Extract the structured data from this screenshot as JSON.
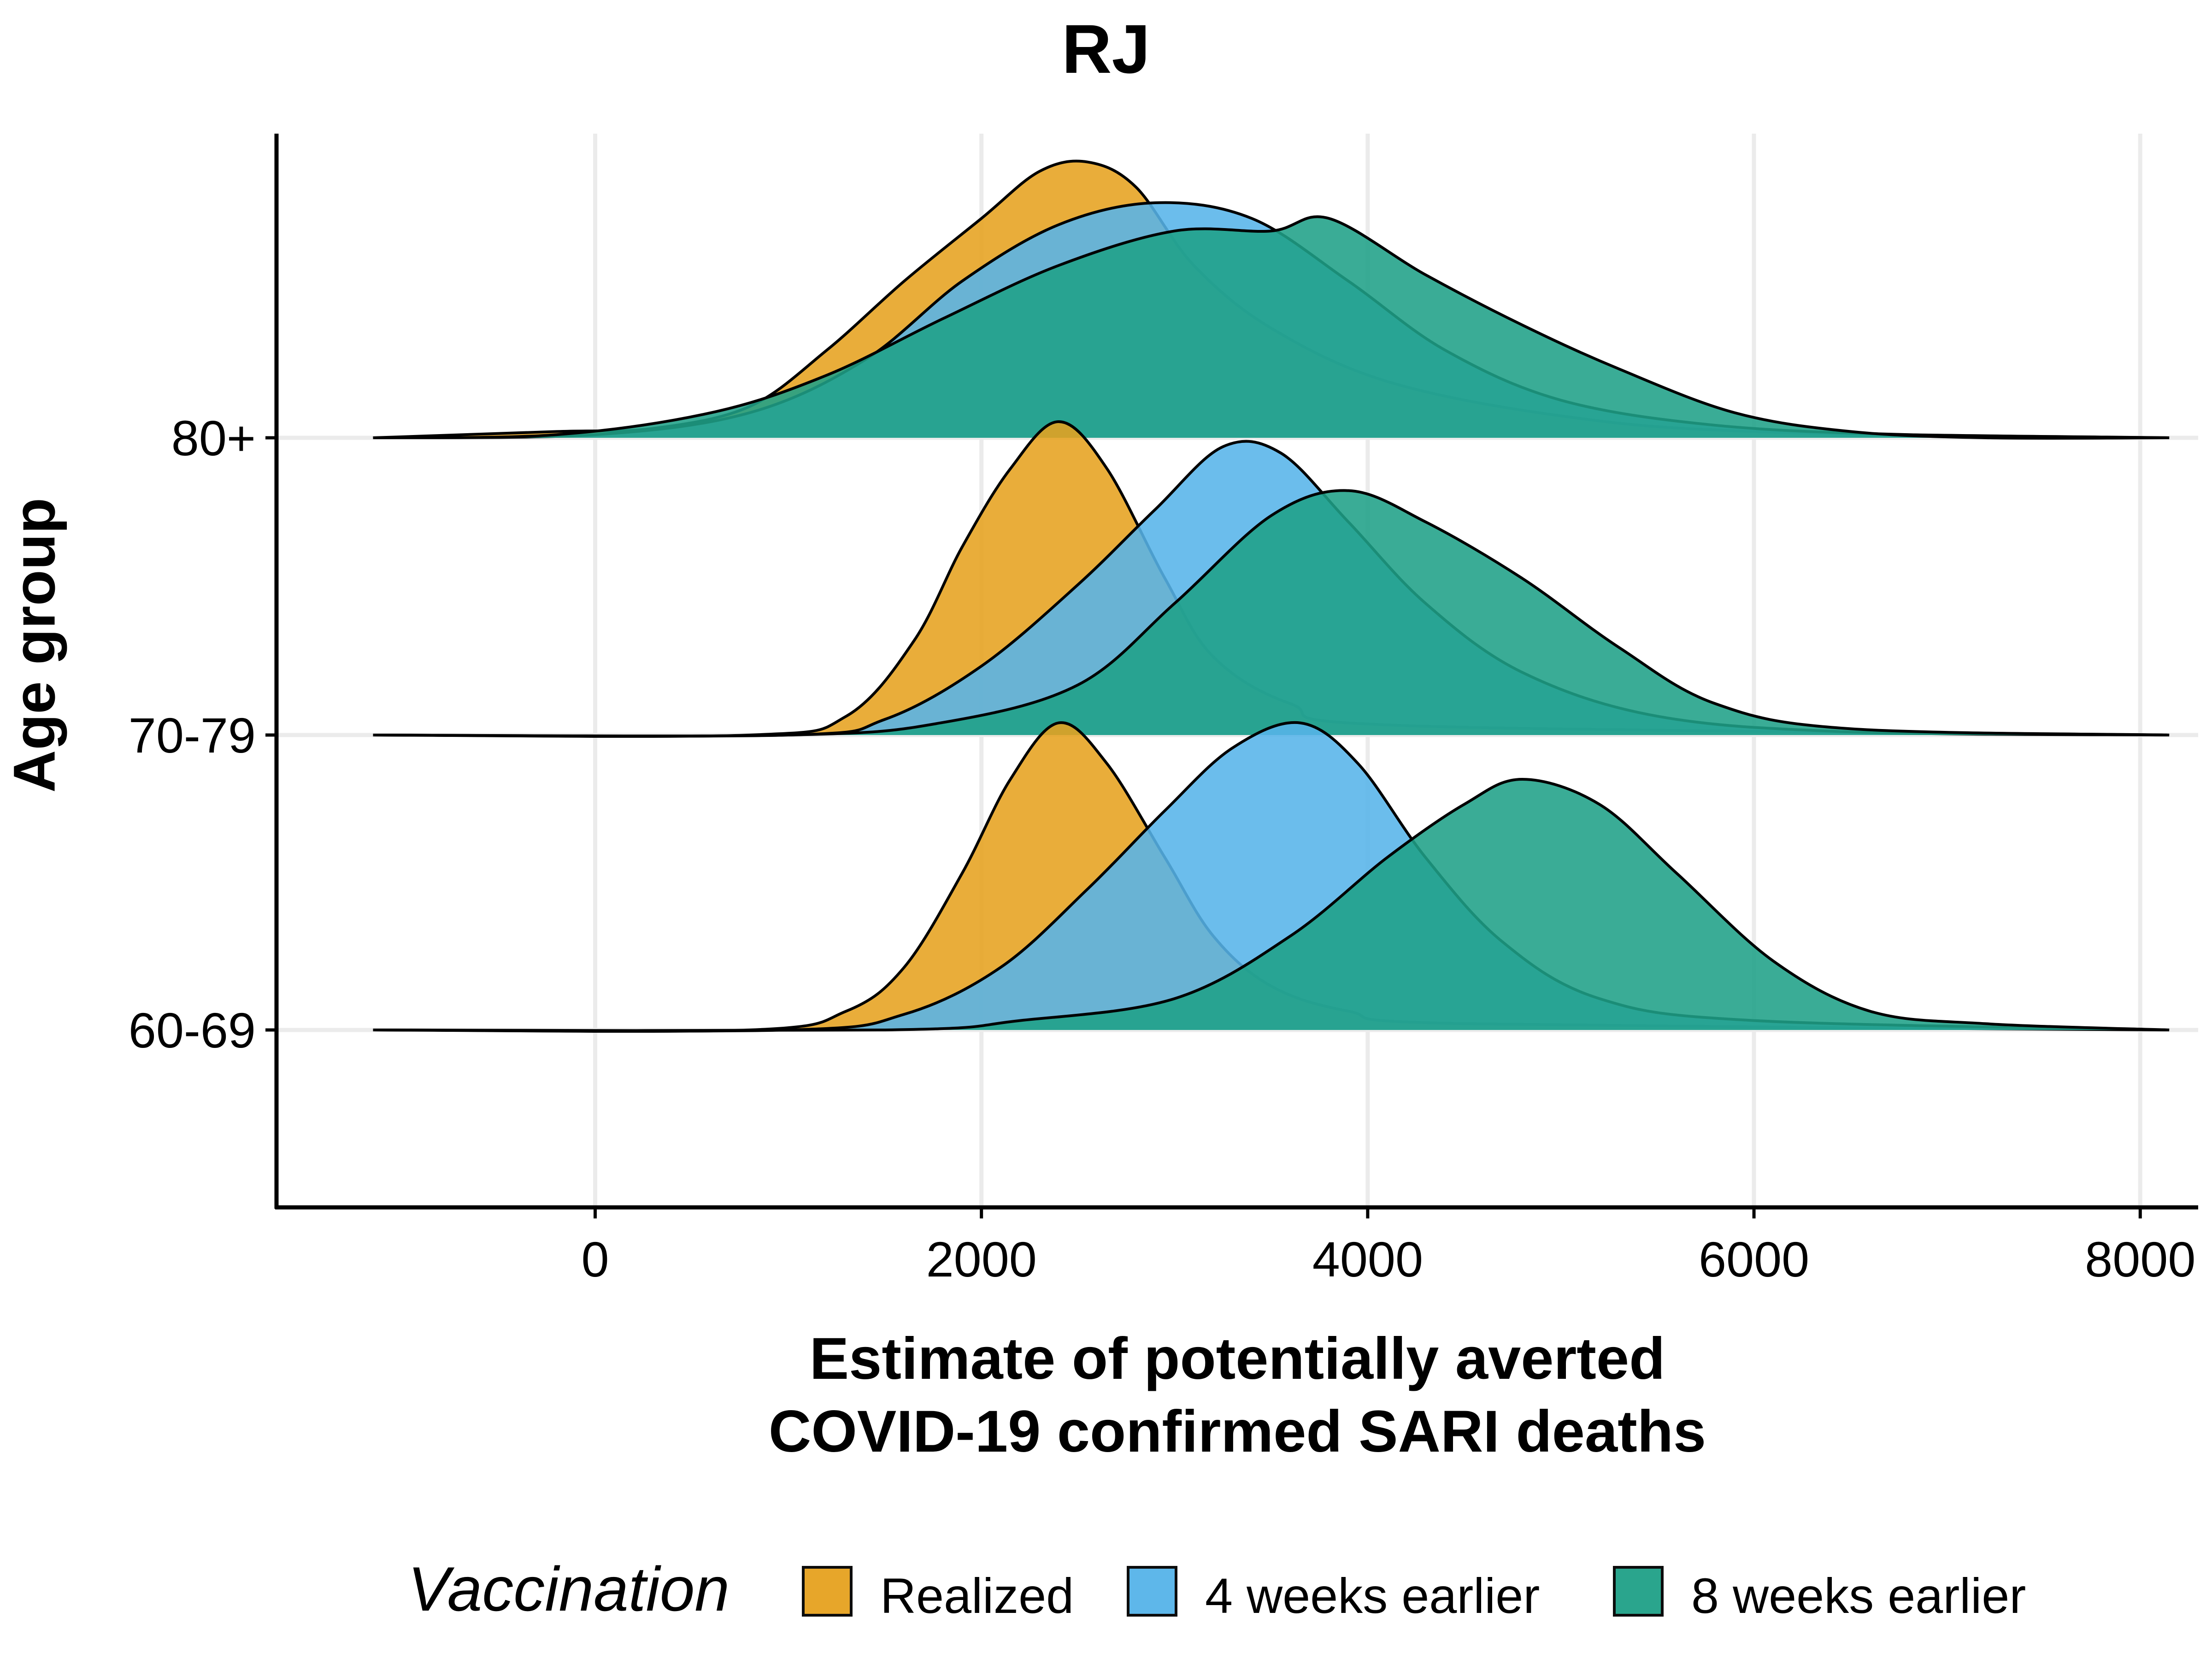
{
  "chart_data": {
    "type": "ridgeline density",
    "title": "RJ",
    "xlabel": "Estimate of potentially averted\nCOVID-19 confirmed SARI deaths",
    "ylabel": "Age group",
    "xlim": [
      -1650,
      8300
    ],
    "x_ticks": [
      0,
      2000,
      4000,
      6000,
      8000
    ],
    "x_tick_labels": [
      "0",
      "2000",
      "4000",
      "6000",
      "8000"
    ],
    "categories": [
      "60-69",
      "70-79",
      "80+"
    ],
    "grid": "major x and y",
    "legend": {
      "title": "Vaccination",
      "position": "bottom"
    },
    "series": [
      {
        "name": "Realized",
        "color": "#E6A21F",
        "peaks": [
          {
            "category": "60-69",
            "values": [
              [
                -1150,
                0
              ],
              [
                800,
                0
              ],
              [
                1300,
                0.06
              ],
              [
                1600,
                0.2
              ],
              [
                1900,
                0.5
              ],
              [
                2150,
                0.8
              ],
              [
                2400,
                0.98
              ],
              [
                2650,
                0.85
              ],
              [
                2950,
                0.55
              ],
              [
                3200,
                0.3
              ],
              [
                3500,
                0.14
              ],
              [
                3900,
                0.06
              ],
              [
                4500,
                0.02
              ],
              [
                8150,
                0
              ]
            ]
          },
          {
            "category": "70-79",
            "values": [
              [
                -1150,
                0
              ],
              [
                800,
                0
              ],
              [
                1300,
                0.06
              ],
              [
                1650,
                0.3
              ],
              [
                1900,
                0.6
              ],
              [
                2150,
                0.85
              ],
              [
                2400,
                1.0
              ],
              [
                2650,
                0.85
              ],
              [
                2950,
                0.5
              ],
              [
                3200,
                0.25
              ],
              [
                3600,
                0.1
              ],
              [
                4200,
                0.03
              ],
              [
                8150,
                0
              ]
            ]
          },
          {
            "category": "80+",
            "values": [
              [
                -1150,
                0
              ],
              [
                -200,
                0.02
              ],
              [
                300,
                0.03
              ],
              [
                800,
                0.1
              ],
              [
                1200,
                0.28
              ],
              [
                1600,
                0.5
              ],
              [
                2000,
                0.7
              ],
              [
                2300,
                0.85
              ],
              [
                2550,
                0.88
              ],
              [
                2800,
                0.8
              ],
              [
                3100,
                0.55
              ],
              [
                3500,
                0.35
              ],
              [
                4100,
                0.18
              ],
              [
                5000,
                0.07
              ],
              [
                6000,
                0.02
              ],
              [
                8150,
                0
              ]
            ]
          }
        ]
      },
      {
        "name": "4 weeks earlier",
        "color": "#56B4E9",
        "peaks": [
          {
            "category": "60-69",
            "values": [
              [
                -1150,
                0
              ],
              [
                1000,
                0
              ],
              [
                1600,
                0.05
              ],
              [
                2100,
                0.2
              ],
              [
                2550,
                0.45
              ],
              [
                2950,
                0.7
              ],
              [
                3300,
                0.9
              ],
              [
                3650,
                0.98
              ],
              [
                3950,
                0.85
              ],
              [
                4300,
                0.55
              ],
              [
                4700,
                0.28
              ],
              [
                5200,
                0.1
              ],
              [
                6000,
                0.03
              ],
              [
                8150,
                0
              ]
            ]
          },
          {
            "category": "70-79",
            "values": [
              [
                -1150,
                0
              ],
              [
                1000,
                0
              ],
              [
                1500,
                0.05
              ],
              [
                2000,
                0.22
              ],
              [
                2500,
                0.48
              ],
              [
                2900,
                0.72
              ],
              [
                3250,
                0.92
              ],
              [
                3550,
                0.9
              ],
              [
                3900,
                0.68
              ],
              [
                4300,
                0.42
              ],
              [
                4800,
                0.2
              ],
              [
                5500,
                0.06
              ],
              [
                6500,
                0.01
              ],
              [
                8150,
                0
              ]
            ]
          },
          {
            "category": "80+",
            "values": [
              [
                -1150,
                0
              ],
              [
                0,
                0.01
              ],
              [
                800,
                0.08
              ],
              [
                1400,
                0.25
              ],
              [
                1900,
                0.5
              ],
              [
                2400,
                0.68
              ],
              [
                2900,
                0.75
              ],
              [
                3400,
                0.7
              ],
              [
                3900,
                0.5
              ],
              [
                4400,
                0.28
              ],
              [
                5000,
                0.12
              ],
              [
                5800,
                0.04
              ],
              [
                6800,
                0.01
              ],
              [
                8150,
                0
              ]
            ]
          }
        ]
      },
      {
        "name": "8 weeks earlier",
        "color": "#1FA187",
        "peaks": [
          {
            "category": "60-69",
            "values": [
              [
                -1150,
                0
              ],
              [
                1500,
                0
              ],
              [
                2200,
                0.03
              ],
              [
                3000,
                0.1
              ],
              [
                3600,
                0.3
              ],
              [
                4100,
                0.55
              ],
              [
                4500,
                0.72
              ],
              [
                4800,
                0.8
              ],
              [
                5200,
                0.72
              ],
              [
                5600,
                0.5
              ],
              [
                6100,
                0.22
              ],
              [
                6600,
                0.06
              ],
              [
                7200,
                0.02
              ],
              [
                8150,
                0
              ]
            ]
          },
          {
            "category": "70-79",
            "values": [
              [
                -1150,
                0
              ],
              [
                1000,
                0
              ],
              [
                1800,
                0.04
              ],
              [
                2500,
                0.16
              ],
              [
                3000,
                0.42
              ],
              [
                3500,
                0.7
              ],
              [
                3900,
                0.78
              ],
              [
                4300,
                0.68
              ],
              [
                4800,
                0.5
              ],
              [
                5300,
                0.28
              ],
              [
                5800,
                0.1
              ],
              [
                6500,
                0.02
              ],
              [
                8150,
                0
              ]
            ]
          },
          {
            "category": "80+",
            "values": [
              [
                -1150,
                0
              ],
              [
                -200,
                0.01
              ],
              [
                600,
                0.08
              ],
              [
                1200,
                0.2
              ],
              [
                1800,
                0.38
              ],
              [
                2400,
                0.55
              ],
              [
                3000,
                0.66
              ],
              [
                3500,
                0.66
              ],
              [
                3800,
                0.7
              ],
              [
                4300,
                0.52
              ],
              [
                4800,
                0.36
              ],
              [
                5300,
                0.22
              ],
              [
                5900,
                0.08
              ],
              [
                6500,
                0.02
              ],
              [
                7200,
                0
              ],
              [
                8150,
                0
              ]
            ]
          }
        ]
      }
    ]
  }
}
